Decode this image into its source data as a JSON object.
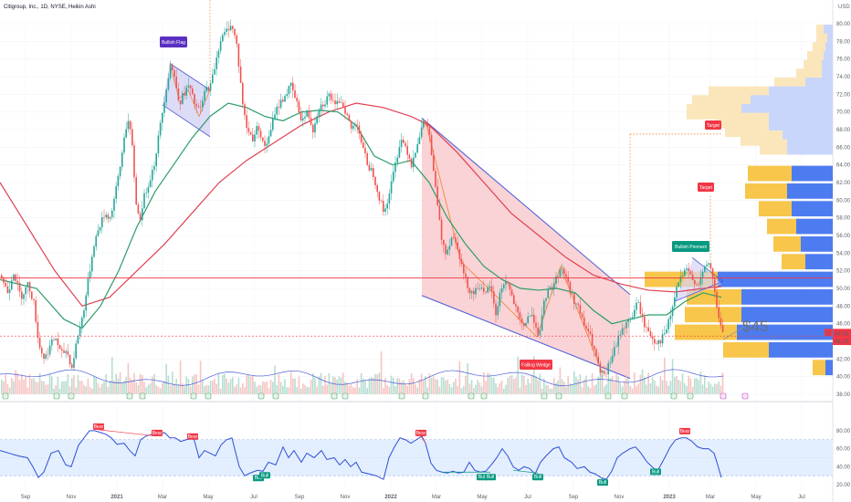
{
  "header": {
    "title": "Citigroup, Inc., 1D, NYSE, Heikin Ashi",
    "currency": "USD"
  },
  "colors": {
    "up": "#26a69a",
    "down": "#ef5350",
    "ma_short": "#2e9c6a",
    "ma_long": "#e04050",
    "wedge_fill": "#f7c4c8",
    "wedge_line": "#4a5bd6",
    "zigzag": "#f08a3c",
    "rsi": "#2f4fd6",
    "rsi_band": "#e3efff",
    "vp_up": "#4d7cf0",
    "vp_down": "#f7c64a",
    "vp_up_light": "#c9d6fb",
    "vp_down_light": "#fbe6bc",
    "label_red": "#f23645",
    "label_green": "#089981",
    "label_purple": "#5b2fc2",
    "resistance": "#f23645",
    "price_line": "#f23645"
  },
  "chart_data": {
    "type": "candlestick",
    "title": "Citigroup, Inc., 1D, NYSE, Heikin Ashi",
    "y_label": "USD",
    "ylim": [
      38,
      80
    ],
    "y_ticks": [
      "80.00",
      "78.00",
      "76.00",
      "74.00",
      "72.00",
      "70.00",
      "68.00",
      "66.00",
      "64.00",
      "62.00",
      "60.00",
      "58.00",
      "56.00",
      "54.00",
      "52.00",
      "50.00",
      "48.00",
      "46.00",
      "44.00",
      "42.00",
      "40.00",
      "38.00"
    ],
    "x_ticks": [
      "Sep",
      "Nov",
      "2021",
      "Mar",
      "May",
      "Jul",
      "Sep",
      "Nov",
      "2022",
      "Mar",
      "May",
      "Jul",
      "Sep",
      "Nov",
      "2023",
      "Mar",
      "May",
      "Jul"
    ],
    "price_path": [
      [
        0,
        51.5
      ],
      [
        8,
        49.5
      ],
      [
        14,
        52.0
      ],
      [
        22,
        49.0
      ],
      [
        30,
        50.5
      ],
      [
        36,
        48.5
      ],
      [
        42,
        43.5
      ],
      [
        48,
        42.0
      ],
      [
        54,
        43.5
      ],
      [
        60,
        44.5
      ],
      [
        66,
        42.5
      ],
      [
        72,
        43.0
      ],
      [
        78,
        41.0
      ],
      [
        84,
        44.5
      ],
      [
        90,
        47.0
      ],
      [
        96,
        51.0
      ],
      [
        102,
        55.0
      ],
      [
        108,
        57.0
      ],
      [
        114,
        58.5
      ],
      [
        120,
        58.0
      ],
      [
        126,
        61.0
      ],
      [
        132,
        64.5
      ],
      [
        136,
        68.0
      ],
      [
        140,
        69.0
      ],
      [
        144,
        66.0
      ],
      [
        148,
        60.0
      ],
      [
        152,
        57.5
      ],
      [
        156,
        60.0
      ],
      [
        162,
        62.0
      ],
      [
        168,
        64.0
      ],
      [
        174,
        68.0
      ],
      [
        180,
        72.0
      ],
      [
        186,
        75.5
      ],
      [
        190,
        74.0
      ],
      [
        196,
        71.0
      ],
      [
        200,
        72.0
      ],
      [
        206,
        73.0
      ],
      [
        212,
        71.0
      ],
      [
        218,
        70.0
      ],
      [
        224,
        72.5
      ],
      [
        230,
        73.0
      ],
      [
        236,
        76.0
      ],
      [
        240,
        78.0
      ],
      [
        246,
        79.0
      ],
      [
        252,
        80.0
      ],
      [
        258,
        78.0
      ],
      [
        262,
        74.0
      ],
      [
        266,
        70.0
      ],
      [
        270,
        68.0
      ],
      [
        276,
        67.0
      ],
      [
        282,
        68.5
      ],
      [
        288,
        66.0
      ],
      [
        294,
        67.0
      ],
      [
        300,
        70.0
      ],
      [
        306,
        71.0
      ],
      [
        312,
        72.0
      ],
      [
        318,
        73.0
      ],
      [
        324,
        71.0
      ],
      [
        330,
        69.0
      ],
      [
        336,
        70.0
      ],
      [
        342,
        68.0
      ],
      [
        348,
        70.5
      ],
      [
        354,
        71.0
      ],
      [
        360,
        72.0
      ],
      [
        366,
        70.5
      ],
      [
        372,
        71.5
      ],
      [
        378,
        70.0
      ],
      [
        384,
        68.0
      ],
      [
        390,
        69.0
      ],
      [
        396,
        66.0
      ],
      [
        402,
        64.0
      ],
      [
        408,
        63.0
      ],
      [
        414,
        60.5
      ],
      [
        420,
        58.5
      ],
      [
        426,
        61.0
      ],
      [
        432,
        64.0
      ],
      [
        438,
        67.0
      ],
      [
        444,
        66.0
      ],
      [
        450,
        64.0
      ],
      [
        456,
        66.5
      ],
      [
        462,
        68.5
      ],
      [
        466,
        69.0
      ],
      [
        470,
        67.0
      ],
      [
        474,
        63.0
      ],
      [
        478,
        60.0
      ],
      [
        482,
        56.0
      ],
      [
        488,
        54.0
      ],
      [
        494,
        56.0
      ],
      [
        500,
        55.0
      ],
      [
        506,
        52.0
      ],
      [
        512,
        50.0
      ],
      [
        518,
        49.5
      ],
      [
        524,
        50.5
      ],
      [
        530,
        49.0
      ],
      [
        536,
        50.5
      ],
      [
        542,
        47.0
      ],
      [
        548,
        50.0
      ],
      [
        554,
        51.0
      ],
      [
        560,
        49.0
      ],
      [
        566,
        47.0
      ],
      [
        572,
        45.5
      ],
      [
        578,
        47.0
      ],
      [
        584,
        46.5
      ],
      [
        590,
        44.5
      ],
      [
        596,
        49.0
      ],
      [
        602,
        50.0
      ],
      [
        608,
        51.0
      ],
      [
        614,
        52.5
      ],
      [
        620,
        51.0
      ],
      [
        626,
        49.0
      ],
      [
        632,
        48.0
      ],
      [
        638,
        46.0
      ],
      [
        644,
        45.0
      ],
      [
        650,
        43.0
      ],
      [
        656,
        40.5
      ],
      [
        662,
        40.0
      ],
      [
        668,
        42.0
      ],
      [
        674,
        43.5
      ],
      [
        680,
        45.5
      ],
      [
        686,
        46.0
      ],
      [
        692,
        47.0
      ],
      [
        698,
        48.5
      ],
      [
        704,
        46.0
      ],
      [
        710,
        45.0
      ],
      [
        716,
        44.0
      ],
      [
        722,
        44.0
      ],
      [
        728,
        45.0
      ],
      [
        734,
        47.0
      ],
      [
        740,
        50.0
      ],
      [
        746,
        51.5
      ],
      [
        752,
        52.0
      ],
      [
        758,
        51.0
      ],
      [
        764,
        50.5
      ],
      [
        770,
        52.0
      ],
      [
        776,
        53.0
      ],
      [
        780,
        51.0
      ],
      [
        784,
        48.0
      ],
      [
        788,
        46.0
      ],
      [
        792,
        44.3
      ]
    ],
    "ma_short_path": [
      [
        0,
        51.0
      ],
      [
        40,
        50.0
      ],
      [
        70,
        46.5
      ],
      [
        90,
        45.5
      ],
      [
        110,
        48.0
      ],
      [
        130,
        52.0
      ],
      [
        150,
        57.0
      ],
      [
        170,
        61.0
      ],
      [
        190,
        64.0
      ],
      [
        210,
        67.0
      ],
      [
        230,
        69.5
      ],
      [
        250,
        71.0
      ],
      [
        270,
        70.5
      ],
      [
        290,
        69.5
      ],
      [
        310,
        69.0
      ],
      [
        330,
        70.0
      ],
      [
        350,
        70.2
      ],
      [
        370,
        70.0
      ],
      [
        390,
        68.5
      ],
      [
        410,
        65.0
      ],
      [
        430,
        64.0
      ],
      [
        450,
        64.5
      ],
      [
        470,
        62.0
      ],
      [
        490,
        58.0
      ],
      [
        510,
        55.0
      ],
      [
        530,
        52.5
      ],
      [
        550,
        51.0
      ],
      [
        570,
        50.0
      ],
      [
        590,
        49.8
      ],
      [
        610,
        50.0
      ],
      [
        630,
        49.5
      ],
      [
        650,
        47.5
      ],
      [
        670,
        46.0
      ],
      [
        690,
        46.5
      ],
      [
        710,
        47.0
      ],
      [
        730,
        47.0
      ],
      [
        750,
        48.5
      ],
      [
        770,
        49.5
      ],
      [
        790,
        49.0
      ]
    ],
    "ma_long_path": [
      [
        0,
        62.0
      ],
      [
        30,
        57.0
      ],
      [
        60,
        52.0
      ],
      [
        90,
        48.0
      ],
      [
        120,
        49.0
      ],
      [
        150,
        52.0
      ],
      [
        180,
        55.0
      ],
      [
        210,
        58.5
      ],
      [
        240,
        62.0
      ],
      [
        270,
        64.5
      ],
      [
        300,
        66.5
      ],
      [
        330,
        68.5
      ],
      [
        360,
        70.0
      ],
      [
        390,
        71.0
      ],
      [
        420,
        70.5
      ],
      [
        450,
        69.5
      ],
      [
        470,
        68.5
      ],
      [
        500,
        65.5
      ],
      [
        530,
        62.0
      ],
      [
        560,
        58.5
      ],
      [
        590,
        56.0
      ],
      [
        620,
        53.5
      ],
      [
        650,
        51.5
      ],
      [
        680,
        50.5
      ],
      [
        710,
        49.8
      ],
      [
        740,
        49.6
      ],
      [
        770,
        50.0
      ],
      [
        790,
        50.2
      ]
    ],
    "resistance": 51.2,
    "price_line": 44.6,
    "last_prices": [
      "44.53",
      "44.25"
    ],
    "annotations": [
      "Bullish Flag",
      "Falling Wedge",
      "Bullish Pennant",
      "Target",
      "Target",
      "$45"
    ],
    "volume_profile": [
      {
        "price": 79.0,
        "buy": 8,
        "sell": 10
      },
      {
        "price": 78.0,
        "buy": 12,
        "sell": 6
      },
      {
        "price": 77.0,
        "buy": 14,
        "sell": 8
      },
      {
        "price": 76.0,
        "buy": 18,
        "sell": 10
      },
      {
        "price": 75.0,
        "buy": 20,
        "sell": 12
      },
      {
        "price": 74.0,
        "buy": 28,
        "sell": 12
      },
      {
        "price": 73.0,
        "buy": 34,
        "sell": 30
      },
      {
        "price": 72.0,
        "buy": 66,
        "sell": 70
      },
      {
        "price": 71.0,
        "buy": 64,
        "sell": 90
      },
      {
        "price": 70.0,
        "buy": 60,
        "sell": 100
      },
      {
        "price": 69.0,
        "buy": 58,
        "sell": 70
      },
      {
        "price": 68.0,
        "buy": 48,
        "sell": 70
      },
      {
        "price": 67.0,
        "buy": 46,
        "sell": 55
      },
      {
        "price": 66.0,
        "buy": 30,
        "sell": 50
      },
      {
        "price": 63.0,
        "buy": 48,
        "sell": 45
      },
      {
        "price": 61.0,
        "buy": 46,
        "sell": 50
      },
      {
        "price": 59.0,
        "buy": 36,
        "sell": 45
      },
      {
        "price": 57.0,
        "buy": 32,
        "sell": 40
      },
      {
        "price": 55.0,
        "buy": 30,
        "sell": 35
      },
      {
        "price": 53.0,
        "buy": 26,
        "sell": 30
      },
      {
        "price": 51.0,
        "buy": 80,
        "sell": 126
      },
      {
        "price": 49.0,
        "buy": 60,
        "sell": 100
      },
      {
        "price": 47.0,
        "buy": 62,
        "sell": 100
      },
      {
        "price": 45.0,
        "buy": 68,
        "sell": 105
      },
      {
        "price": 43.0,
        "buy": 50,
        "sell": 70
      },
      {
        "price": 41.0,
        "buy": 14,
        "sell": 8
      }
    ],
    "rsi": {
      "ylim": [
        15,
        88
      ],
      "ticks": [
        "80.00",
        "60.00",
        "40.00",
        "20.00"
      ],
      "band": [
        30,
        70
      ],
      "path": [
        [
          0,
          58
        ],
        [
          10,
          55
        ],
        [
          20,
          52
        ],
        [
          30,
          50
        ],
        [
          36,
          40
        ],
        [
          42,
          28
        ],
        [
          48,
          34
        ],
        [
          56,
          55
        ],
        [
          64,
          58
        ],
        [
          72,
          42
        ],
        [
          78,
          40
        ],
        [
          86,
          64
        ],
        [
          92,
          72
        ],
        [
          98,
          80
        ],
        [
          104,
          80
        ],
        [
          110,
          78
        ],
        [
          116,
          76
        ],
        [
          122,
          72
        ],
        [
          128,
          65
        ],
        [
          136,
          66
        ],
        [
          142,
          58
        ],
        [
          148,
          52
        ],
        [
          154,
          70
        ],
        [
          160,
          74
        ],
        [
          166,
          76
        ],
        [
          172,
          75
        ],
        [
          180,
          78
        ],
        [
          186,
          72
        ],
        [
          192,
          72
        ],
        [
          198,
          68
        ],
        [
          204,
          70
        ],
        [
          212,
          72
        ],
        [
          218,
          50
        ],
        [
          224,
          58
        ],
        [
          230,
          55
        ],
        [
          236,
          52
        ],
        [
          242,
          64
        ],
        [
          248,
          70
        ],
        [
          254,
          72
        ],
        [
          262,
          40
        ],
        [
          268,
          30
        ],
        [
          274,
          33
        ],
        [
          282,
          36
        ],
        [
          288,
          35
        ],
        [
          294,
          45
        ],
        [
          302,
          42
        ],
        [
          310,
          62
        ],
        [
          316,
          50
        ],
        [
          322,
          58
        ],
        [
          330,
          45
        ],
        [
          336,
          55
        ],
        [
          344,
          50
        ],
        [
          352,
          58
        ],
        [
          358,
          48
        ],
        [
          366,
          50
        ],
        [
          372,
          42
        ],
        [
          378,
          48
        ],
        [
          384,
          40
        ],
        [
          390,
          45
        ],
        [
          396,
          34
        ],
        [
          404,
          32
        ],
        [
          412,
          30
        ],
        [
          420,
          26
        ],
        [
          426,
          50
        ],
        [
          432,
          62
        ],
        [
          438,
          72
        ],
        [
          444,
          70
        ],
        [
          450,
          66
        ],
        [
          456,
          70
        ],
        [
          462,
          74
        ],
        [
          466,
          66
        ],
        [
          472,
          44
        ],
        [
          478,
          36
        ],
        [
          484,
          34
        ],
        [
          490,
          33
        ],
        [
          496,
          35
        ],
        [
          502,
          33
        ],
        [
          508,
          34
        ],
        [
          514,
          45
        ],
        [
          520,
          36
        ],
        [
          526,
          34
        ],
        [
          532,
          35
        ],
        [
          538,
          42
        ],
        [
          544,
          50
        ],
        [
          550,
          60
        ],
        [
          556,
          52
        ],
        [
          562,
          40
        ],
        [
          568,
          36
        ],
        [
          574,
          40
        ],
        [
          580,
          38
        ],
        [
          586,
          32
        ],
        [
          592,
          45
        ],
        [
          598,
          52
        ],
        [
          606,
          60
        ],
        [
          612,
          62
        ],
        [
          618,
          50
        ],
        [
          626,
          45
        ],
        [
          632,
          38
        ],
        [
          640,
          40
        ],
        [
          646,
          34
        ],
        [
          652,
          32
        ],
        [
          658,
          28
        ],
        [
          664,
          26
        ],
        [
          670,
          35
        ],
        [
          676,
          50
        ],
        [
          682,
          55
        ],
        [
          690,
          60
        ],
        [
          696,
          62
        ],
        [
          702,
          55
        ],
        [
          708,
          46
        ],
        [
          714,
          40
        ],
        [
          720,
          35
        ],
        [
          728,
          50
        ],
        [
          734,
          62
        ],
        [
          740,
          70
        ],
        [
          746,
          72
        ],
        [
          752,
          72
        ],
        [
          758,
          68
        ],
        [
          764,
          62
        ],
        [
          770,
          60
        ],
        [
          776,
          60
        ],
        [
          782,
          55
        ],
        [
          786,
          42
        ],
        [
          790,
          28
        ]
      ],
      "bear_labels": [
        [
          108,
          83
        ],
        [
          172,
          76
        ],
        [
          211,
          72
        ],
        [
          461,
          76
        ],
        [
          750,
          78
        ]
      ],
      "bull_labels": [
        [
          283,
          32
        ],
        [
          290,
          35
        ],
        [
          528,
          33
        ],
        [
          537,
          33
        ],
        [
          589,
          33
        ],
        [
          660,
          27
        ],
        [
          718,
          39
        ]
      ]
    }
  },
  "labels": {
    "bullish_flag": "Bullish Flag",
    "falling_wedge": "Falling Wedge",
    "bullish_pennant": "Bullish Pennant",
    "target1": "Target",
    "target2": "Target",
    "big_price": "$45",
    "price1": "44.53",
    "price2": "44.25",
    "c_mark": "C",
    "bear": "Bear",
    "bull": "Bull"
  }
}
